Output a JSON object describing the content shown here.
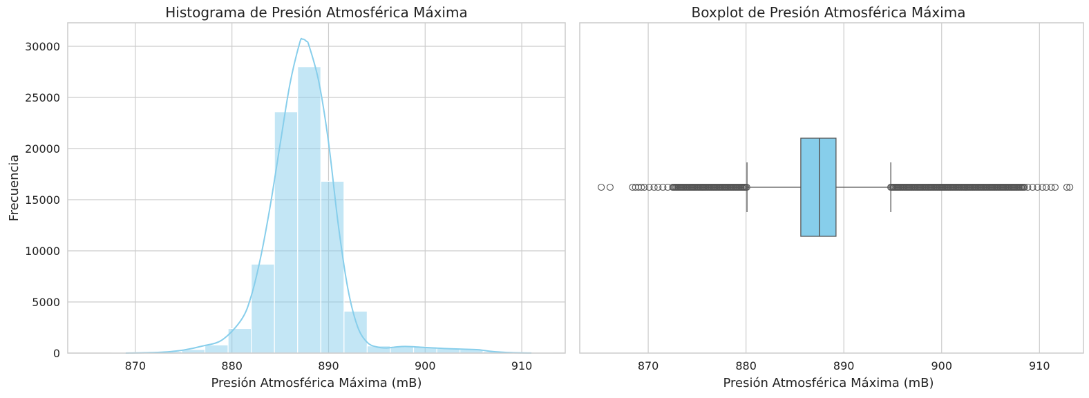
{
  "chart_data": [
    {
      "type": "histogram",
      "title": "Histograma de Presión Atmosférica Máxima",
      "xlabel": "Presión Atmosférica Máxima (mB)",
      "ylabel": "Frecuencia",
      "xlim": [
        863,
        914.5
      ],
      "ylim": [
        0,
        32300
      ],
      "xticks": [
        870,
        880,
        890,
        900,
        910
      ],
      "yticks": [
        0,
        5000,
        10000,
        15000,
        20000,
        25000,
        30000
      ],
      "grid": true,
      "bar_color": "#87ceeb",
      "bin_width": 2.4,
      "bins": [
        {
          "x0": 865.2,
          "x1": 867.6,
          "count": 5
        },
        {
          "x0": 867.6,
          "x1": 870.0,
          "count": 20
        },
        {
          "x0": 870.0,
          "x1": 872.4,
          "count": 60
        },
        {
          "x0": 872.4,
          "x1": 874.8,
          "count": 150
        },
        {
          "x0": 874.8,
          "x1": 877.2,
          "count": 350
        },
        {
          "x0": 877.2,
          "x1": 879.6,
          "count": 800
        },
        {
          "x0": 879.6,
          "x1": 882.0,
          "count": 2400
        },
        {
          "x0": 882.0,
          "x1": 884.4,
          "count": 8700
        },
        {
          "x0": 884.4,
          "x1": 886.8,
          "count": 23600
        },
        {
          "x0": 886.8,
          "x1": 889.2,
          "count": 28000
        },
        {
          "x0": 889.2,
          "x1": 891.6,
          "count": 16800
        },
        {
          "x0": 891.6,
          "x1": 894.0,
          "count": 4100
        },
        {
          "x0": 894.0,
          "x1": 896.4,
          "count": 700
        },
        {
          "x0": 896.4,
          "x1": 898.8,
          "count": 650
        },
        {
          "x0": 898.8,
          "x1": 901.2,
          "count": 600
        },
        {
          "x0": 901.2,
          "x1": 903.6,
          "count": 450
        },
        {
          "x0": 903.6,
          "x1": 906.0,
          "count": 350
        },
        {
          "x0": 906.0,
          "x1": 908.4,
          "count": 150
        },
        {
          "x0": 908.4,
          "x1": 910.8,
          "count": 50
        },
        {
          "x0": 910.8,
          "x1": 913.2,
          "count": 10
        }
      ],
      "kde": [
        [
          869,
          0
        ],
        [
          871,
          30
        ],
        [
          873,
          100
        ],
        [
          875,
          300
        ],
        [
          877,
          700
        ],
        [
          879,
          1300
        ],
        [
          881,
          3300
        ],
        [
          882,
          5600
        ],
        [
          883,
          9500
        ],
        [
          884,
          14600
        ],
        [
          885,
          20500
        ],
        [
          886,
          26300
        ],
        [
          887,
          30300
        ],
        [
          887.3,
          30700
        ],
        [
          887.7,
          30500
        ],
        [
          888,
          30000
        ],
        [
          889,
          26500
        ],
        [
          890,
          20600
        ],
        [
          891,
          12600
        ],
        [
          892,
          6300
        ],
        [
          893,
          2600
        ],
        [
          894,
          1050
        ],
        [
          895,
          600
        ],
        [
          896,
          500
        ],
        [
          897,
          600
        ],
        [
          898,
          650
        ],
        [
          900,
          550
        ],
        [
          902,
          450
        ],
        [
          904,
          380
        ],
        [
          905.5,
          330
        ],
        [
          907,
          150
        ],
        [
          909,
          40
        ],
        [
          911,
          5
        ]
      ]
    },
    {
      "type": "boxplot",
      "title": "Boxplot de Presión Atmosférica Máxima",
      "xlabel": "Presión Atmosférica Máxima (mB)",
      "xlim": [
        863,
        914.5
      ],
      "xticks": [
        870,
        880,
        890,
        900,
        910
      ],
      "grid": true,
      "box_color": "#87ceeb",
      "line_color": "#555555",
      "q1": 885.6,
      "median": 887.5,
      "q3": 889.2,
      "whisker_low": 880.1,
      "whisker_high": 894.8,
      "outlier_range_low": [
        872.5,
        880.1
      ],
      "outlier_range_high": [
        894.8,
        908.5
      ],
      "outliers": [
        865.2,
        866.1,
        868.4,
        868.7,
        869.0,
        869.3,
        869.6,
        870.1,
        870.6,
        871.0,
        871.5,
        872.0,
        908.8,
        909.3,
        909.8,
        910.3,
        910.7,
        911.2,
        911.6,
        912.8,
        913.1
      ]
    }
  ]
}
